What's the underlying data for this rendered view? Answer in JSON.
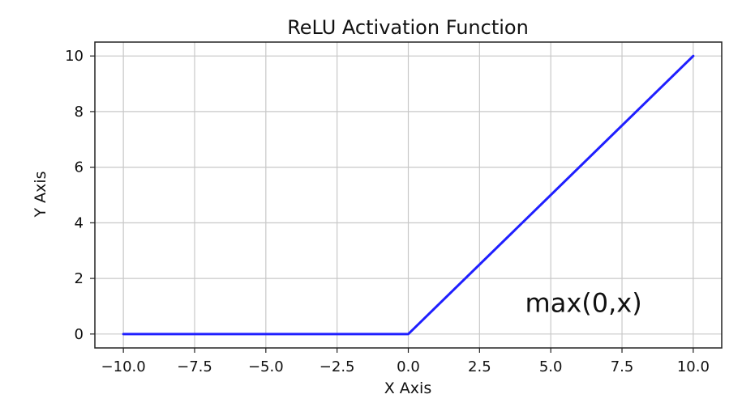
{
  "chart_data": {
    "type": "line",
    "title": "ReLU Activation Function",
    "xlabel": "X Axis",
    "ylabel": "Y Axis",
    "xlim": [
      -11,
      11
    ],
    "ylim": [
      -0.5,
      10.5
    ],
    "grid": true,
    "x_ticks": [
      -10.0,
      -7.5,
      -5.0,
      -2.5,
      0.0,
      2.5,
      5.0,
      7.5,
      10.0
    ],
    "x_tick_labels": [
      "−10.0",
      "−7.5",
      "−5.0",
      "−2.5",
      "0.0",
      "2.5",
      "5.0",
      "7.5",
      "10.0"
    ],
    "y_ticks": [
      0,
      2,
      4,
      6,
      8,
      10
    ],
    "y_tick_labels": [
      "0",
      "2",
      "4",
      "6",
      "8",
      "10"
    ],
    "series": [
      {
        "color": "#1f1fff",
        "x": [
          -10,
          0,
          10
        ],
        "y": [
          0,
          0,
          10
        ]
      }
    ],
    "annotations": [
      {
        "text": "max(0,x)",
        "x": 4.1,
        "y": 0.8
      }
    ]
  }
}
